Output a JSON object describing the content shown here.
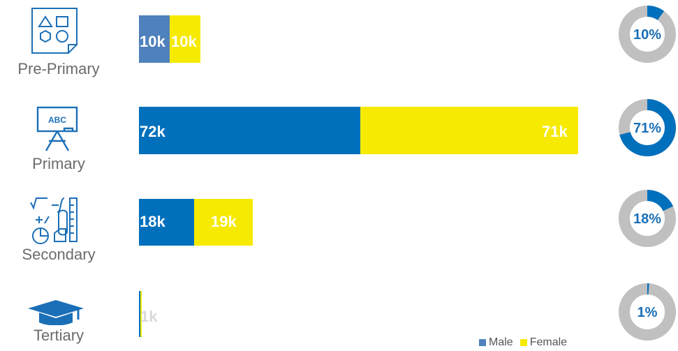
{
  "colors": {
    "male": "#0070bd",
    "male_preprimary": "#4f81bd",
    "female": "#f5ea00",
    "donut_track": "#c0c0c0",
    "label_light": "#ffffff",
    "label_tertiary": "#d9d9d9",
    "pct_text": "#1b6fb7"
  },
  "legend": {
    "male": "Male",
    "female": "Female"
  },
  "chart_data": {
    "type": "bar",
    "stacked": true,
    "orientation": "horizontal",
    "categories": [
      "Pre-Primary",
      "Primary",
      "Secondary",
      "Tertiary"
    ],
    "series": [
      {
        "name": "Male",
        "values": [
          10,
          72,
          18,
          0.5
        ],
        "labels": [
          "10k",
          "72k",
          "18k",
          ""
        ]
      },
      {
        "name": "Female",
        "values": [
          10,
          71,
          19,
          0.5
        ],
        "labels": [
          "10k",
          "71k",
          "19k",
          "1k"
        ]
      }
    ],
    "unit": "k",
    "share_percent": [
      {
        "category": "Pre-Primary",
        "value": 10,
        "label": "10%"
      },
      {
        "category": "Primary",
        "value": 71,
        "label": "71%"
      },
      {
        "category": "Secondary",
        "value": 18,
        "label": "18%"
      },
      {
        "category": "Tertiary",
        "value": 1,
        "label": "1%"
      }
    ],
    "legend_position": "bottom-right",
    "grid": false
  },
  "icons": [
    "shapes-icon",
    "blackboard-icon",
    "math-tools-icon",
    "graduation-cap-icon"
  ]
}
